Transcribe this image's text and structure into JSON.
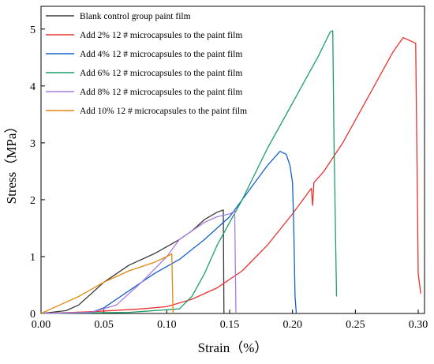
{
  "chart_data": {
    "type": "line",
    "title": "",
    "xlabel": "Strain（%）",
    "ylabel": "Stress（MPa）",
    "xlim": [
      0.0,
      0.305
    ],
    "ylim": [
      0,
      5.4
    ],
    "x_ticks": [
      "0.00",
      "0.05",
      "0.10",
      "0.15",
      "0.20",
      "0.25",
      "0.30"
    ],
    "y_ticks": [
      "0",
      "1",
      "2",
      "3",
      "4",
      "5"
    ],
    "grid": false,
    "legend_position": "top-left",
    "series": [
      {
        "name": "Blank control group paint film",
        "color": "#3a3a3a",
        "points": [
          [
            0.0,
            0.0
          ],
          [
            0.02,
            0.05
          ],
          [
            0.03,
            0.15
          ],
          [
            0.05,
            0.55
          ],
          [
            0.07,
            0.85
          ],
          [
            0.09,
            1.05
          ],
          [
            0.11,
            1.3
          ],
          [
            0.12,
            1.45
          ],
          [
            0.13,
            1.65
          ],
          [
            0.14,
            1.78
          ],
          [
            0.145,
            1.82
          ],
          [
            0.1455,
            0.0
          ]
        ]
      },
      {
        "name": "Add 2% 12 # microcapsules to the paint film",
        "color": "#e8322f",
        "points": [
          [
            0.0,
            0.0
          ],
          [
            0.04,
            0.03
          ],
          [
            0.08,
            0.08
          ],
          [
            0.1,
            0.12
          ],
          [
            0.12,
            0.25
          ],
          [
            0.14,
            0.45
          ],
          [
            0.16,
            0.75
          ],
          [
            0.18,
            1.2
          ],
          [
            0.2,
            1.75
          ],
          [
            0.215,
            2.2
          ],
          [
            0.216,
            1.9
          ],
          [
            0.217,
            2.3
          ],
          [
            0.225,
            2.5
          ],
          [
            0.24,
            3.0
          ],
          [
            0.26,
            3.8
          ],
          [
            0.27,
            4.2
          ],
          [
            0.28,
            4.6
          ],
          [
            0.288,
            4.85
          ],
          [
            0.295,
            4.78
          ],
          [
            0.298,
            4.75
          ],
          [
            0.3,
            0.7
          ],
          [
            0.302,
            0.35
          ]
        ]
      },
      {
        "name": "Add 4% 12 # microcapsules to the paint film",
        "color": "#1560c8",
        "points": [
          [
            0.0,
            0.0
          ],
          [
            0.04,
            0.02
          ],
          [
            0.05,
            0.1
          ],
          [
            0.07,
            0.4
          ],
          [
            0.09,
            0.7
          ],
          [
            0.11,
            0.95
          ],
          [
            0.13,
            1.3
          ],
          [
            0.15,
            1.7
          ],
          [
            0.16,
            2.0
          ],
          [
            0.17,
            2.3
          ],
          [
            0.18,
            2.6
          ],
          [
            0.19,
            2.85
          ],
          [
            0.195,
            2.8
          ],
          [
            0.198,
            2.6
          ],
          [
            0.2,
            2.3
          ],
          [
            0.201,
            1.5
          ],
          [
            0.202,
            0.3
          ],
          [
            0.203,
            0.0
          ]
        ]
      },
      {
        "name": "Add 6% 12 # microcapsules to the paint film",
        "color": "#1c9e68",
        "points": [
          [
            0.0,
            0.0
          ],
          [
            0.07,
            0.02
          ],
          [
            0.11,
            0.08
          ],
          [
            0.12,
            0.3
          ],
          [
            0.13,
            0.7
          ],
          [
            0.14,
            1.2
          ],
          [
            0.15,
            1.6
          ],
          [
            0.16,
            2.0
          ],
          [
            0.18,
            2.9
          ],
          [
            0.2,
            3.7
          ],
          [
            0.21,
            4.1
          ],
          [
            0.22,
            4.5
          ],
          [
            0.23,
            4.95
          ],
          [
            0.232,
            4.97
          ],
          [
            0.233,
            3.0
          ],
          [
            0.235,
            0.3
          ]
        ]
      },
      {
        "name": "Add 8% 12 # microcapsules to the paint film",
        "color": "#a77be0",
        "points": [
          [
            0.0,
            0.0
          ],
          [
            0.04,
            0.02
          ],
          [
            0.06,
            0.15
          ],
          [
            0.08,
            0.55
          ],
          [
            0.1,
            1.0
          ],
          [
            0.11,
            1.3
          ],
          [
            0.12,
            1.45
          ],
          [
            0.13,
            1.6
          ],
          [
            0.14,
            1.7
          ],
          [
            0.15,
            1.75
          ],
          [
            0.154,
            1.8
          ],
          [
            0.155,
            0.0
          ]
        ]
      },
      {
        "name": "Add 10% 12 # microcapsules to the paint film",
        "color": "#e08a10",
        "points": [
          [
            0.0,
            0.0
          ],
          [
            0.01,
            0.1
          ],
          [
            0.03,
            0.3
          ],
          [
            0.05,
            0.55
          ],
          [
            0.07,
            0.75
          ],
          [
            0.09,
            0.9
          ],
          [
            0.1,
            1.0
          ],
          [
            0.104,
            1.05
          ],
          [
            0.105,
            0.0
          ]
        ]
      }
    ]
  }
}
